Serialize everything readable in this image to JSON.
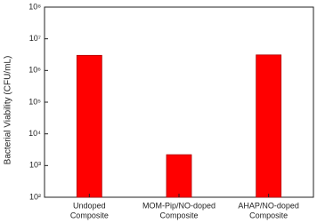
{
  "chart_data": {
    "type": "bar",
    "y_label": "Bacterial Viability (CFU/mL)",
    "categories": [
      [
        "Undoped",
        "Composite"
      ],
      [
        "MOM-Pip/NO-doped",
        "Composite"
      ],
      [
        "AHAP/NO-doped",
        "Composite"
      ]
    ],
    "values": [
      3000000,
      2200,
      3100000
    ],
    "color": "#ff0000",
    "log_scale": true,
    "ylim": [
      100,
      100000000
    ],
    "yticks": [
      {
        "value": 100,
        "label": "10²"
      },
      {
        "value": 1000,
        "label": "10³"
      },
      {
        "value": 10000,
        "label": "10⁴"
      },
      {
        "value": 100000,
        "label": "10⁵"
      },
      {
        "value": 1000000,
        "label": "10⁶"
      },
      {
        "value": 10000000,
        "label": "10⁷"
      },
      {
        "value": 100000000,
        "label": "10⁸"
      }
    ],
    "grid": false
  }
}
